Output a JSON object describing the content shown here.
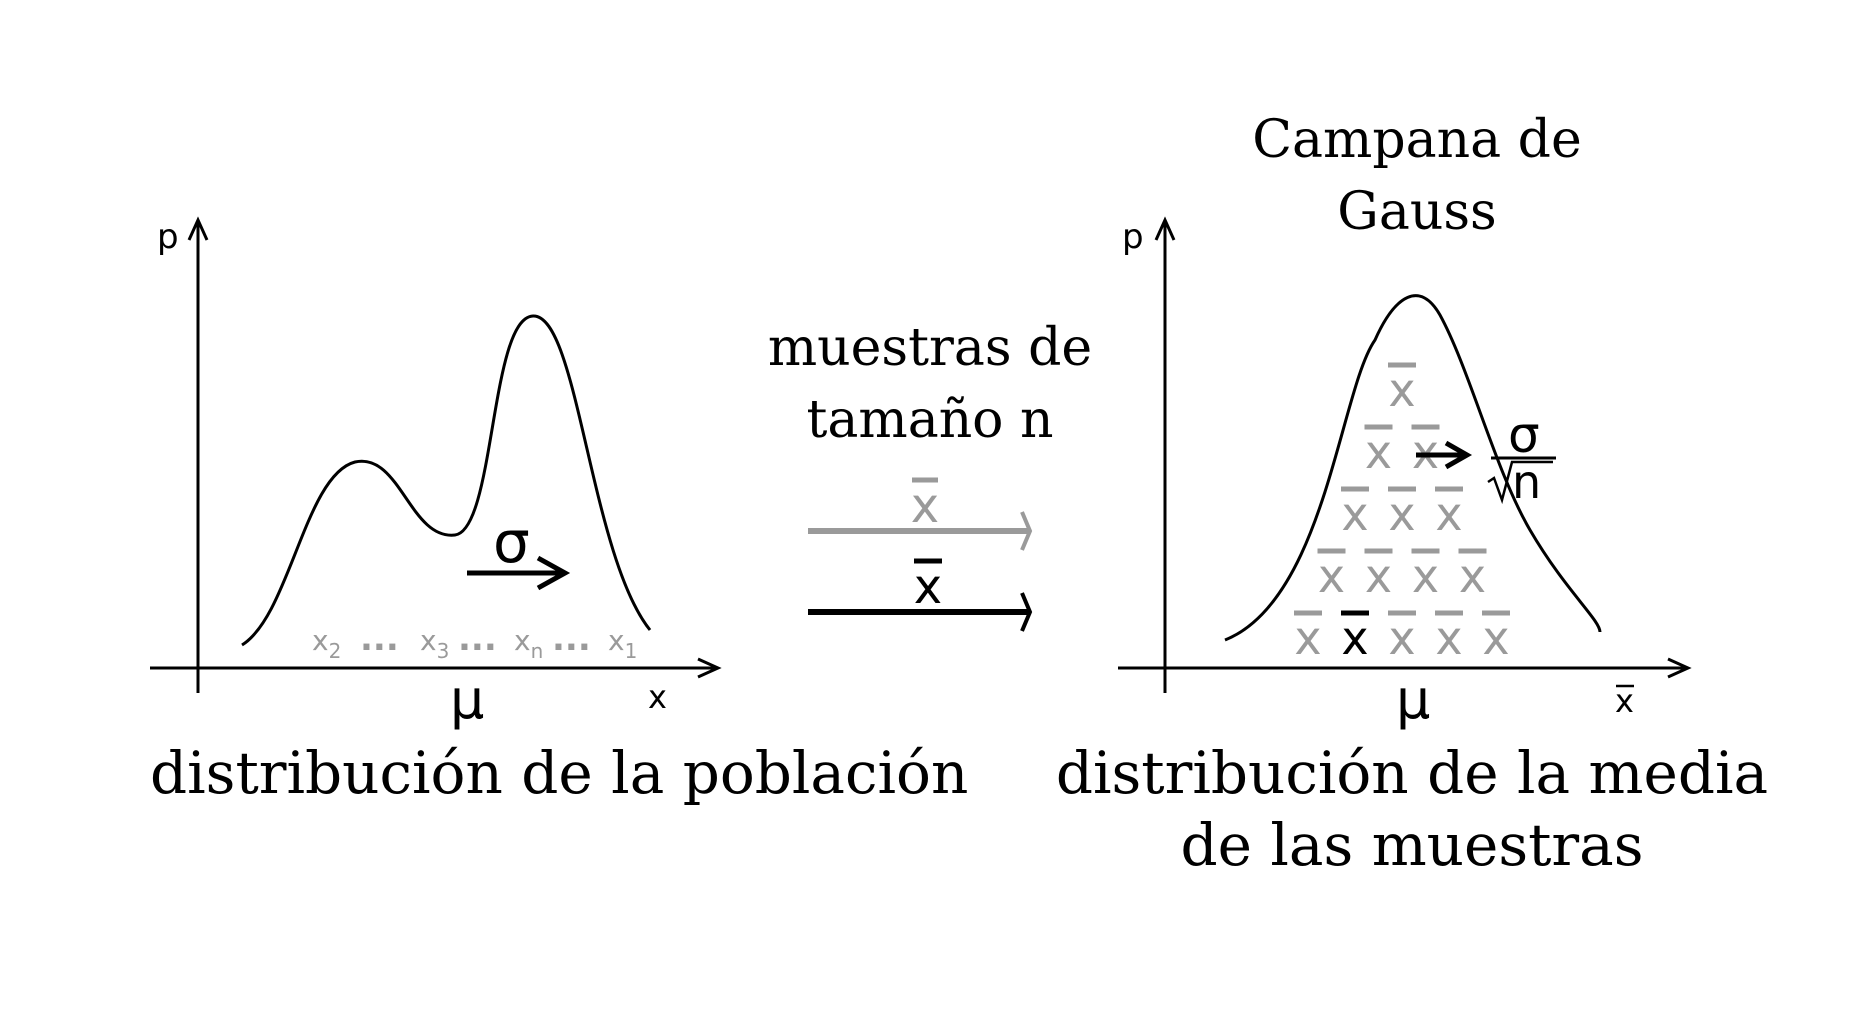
{
  "left_panel": {
    "y_axis_label": "p",
    "x_axis_label": "x",
    "mean_label": "μ",
    "sigma_label": "σ",
    "caption": "distribución de la población",
    "samples": [
      {
        "var": "x",
        "sub": "2"
      },
      {
        "var": "x",
        "sub": "3"
      },
      {
        "var": "x",
        "sub": "n"
      },
      {
        "var": "x",
        "sub": "1"
      }
    ],
    "ellipsis": "..."
  },
  "middle": {
    "line1": "muestras de",
    "line2": "tamaño n",
    "arrow_label": "x",
    "arrow_colors": [
      "#9a9a9a",
      "#000000"
    ]
  },
  "right_panel": {
    "title_line1": "Campana de",
    "title_line2": "Gauss",
    "y_axis_label": "p",
    "x_axis_label": "x",
    "mean_label": "μ",
    "sigma_label": "σ",
    "sqrt_label": "n",
    "caption_line1": "distribución de la media",
    "caption_line2": "de las muestras",
    "stack_symbol": "x",
    "stack_row_counts": [
      5,
      4,
      3,
      2,
      1
    ],
    "highlighted_color": "#000000",
    "sample_color": "#9a9a9a"
  }
}
